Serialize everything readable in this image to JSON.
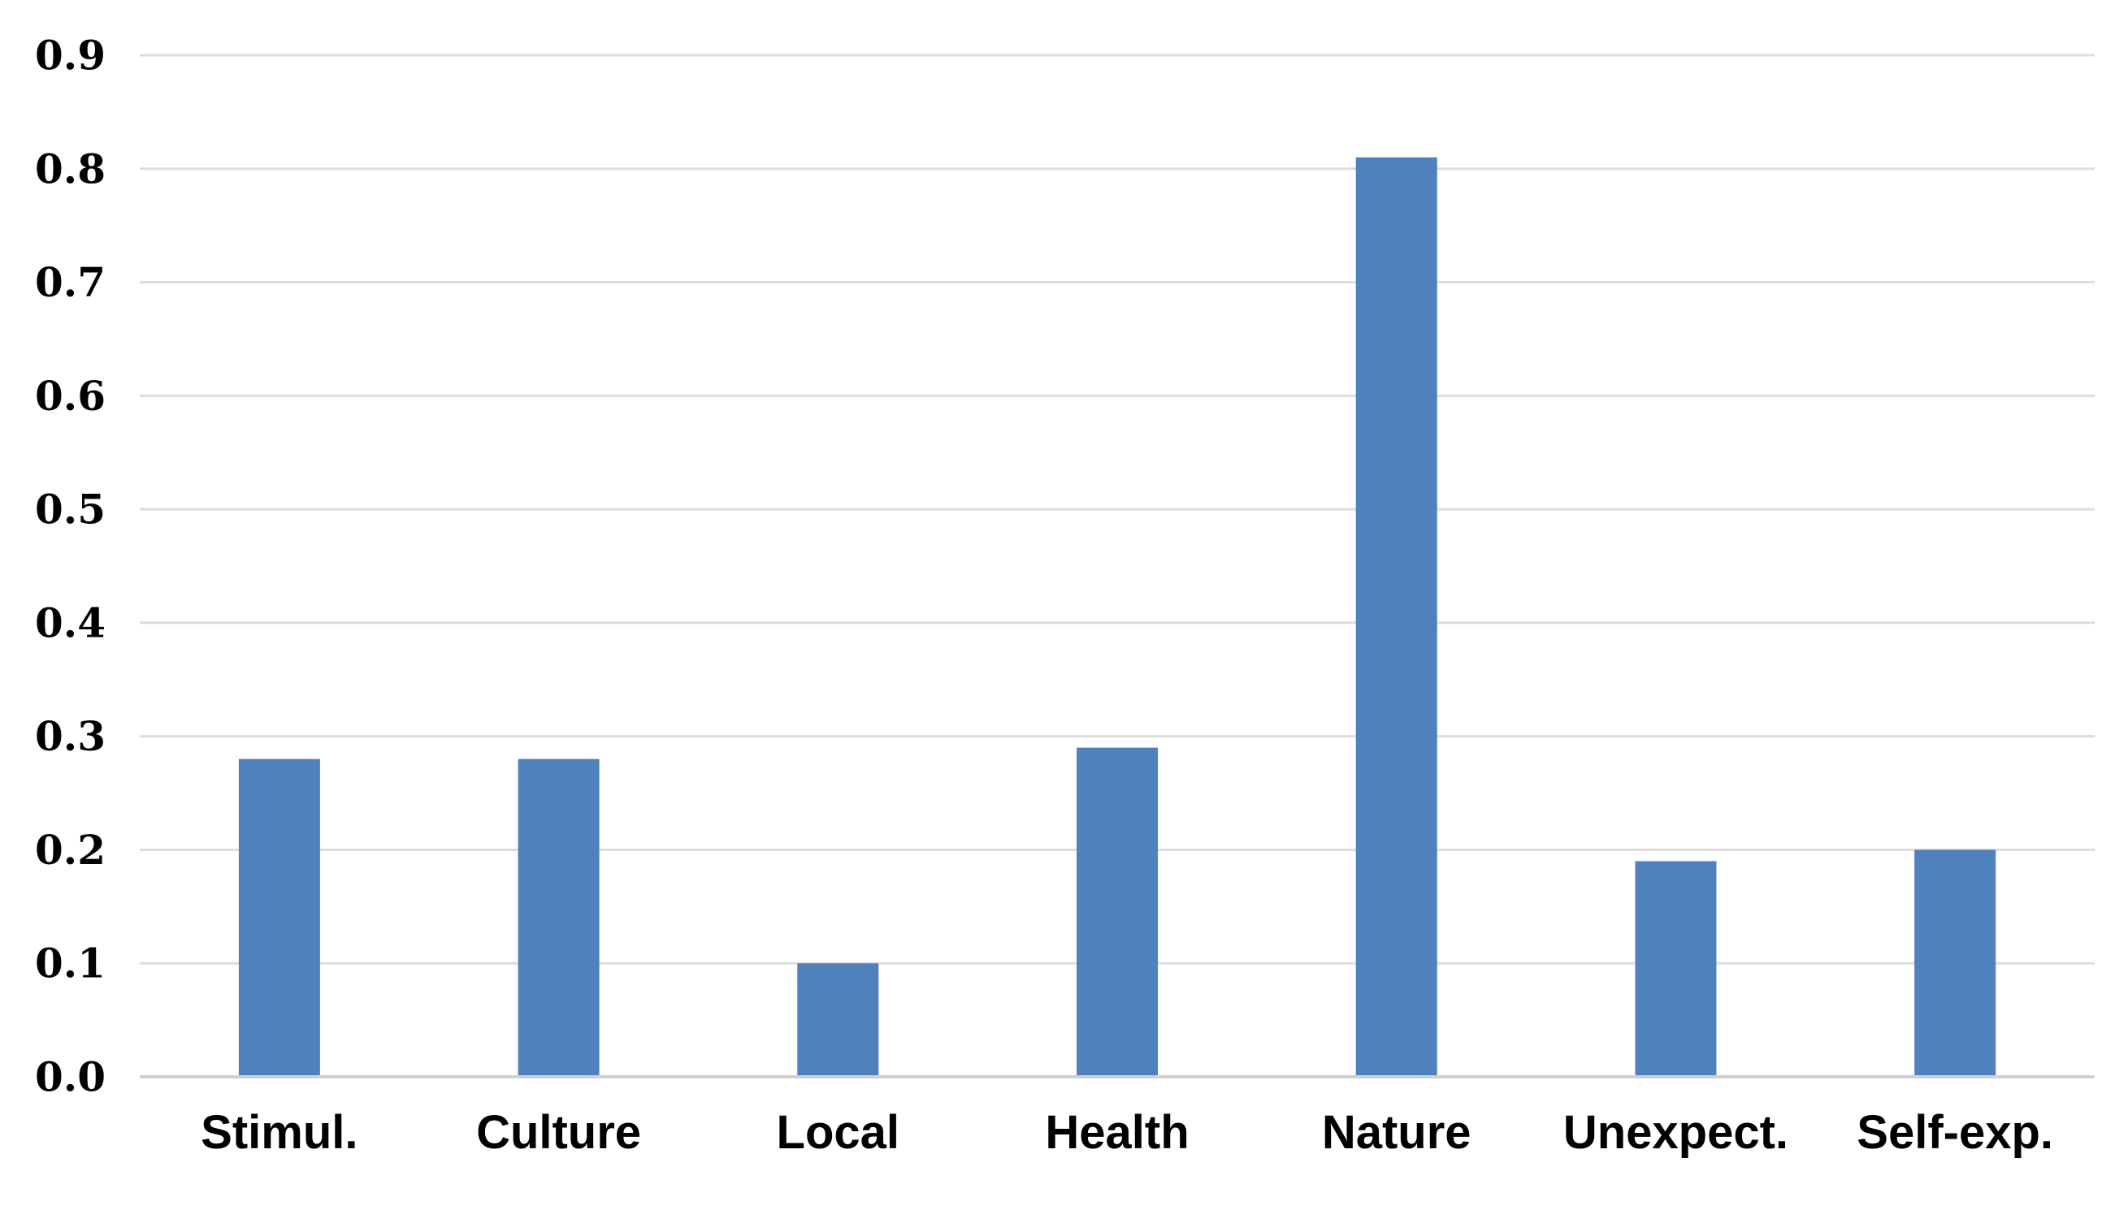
{
  "chart_data": {
    "type": "bar",
    "categories": [
      "Stimul.",
      "Culture",
      "Local",
      "Health",
      "Nature",
      "Unexpect.",
      "Self-exp."
    ],
    "values": [
      0.28,
      0.28,
      0.1,
      0.29,
      0.81,
      0.19,
      0.2
    ],
    "ylim": [
      0,
      0.9
    ],
    "yticks": [
      "0.0",
      "0.1",
      "0.2",
      "0.3",
      "0.4",
      "0.5",
      "0.6",
      "0.7",
      "0.8",
      "0.9"
    ],
    "bar_color": "#4f81bd",
    "grid": true
  }
}
